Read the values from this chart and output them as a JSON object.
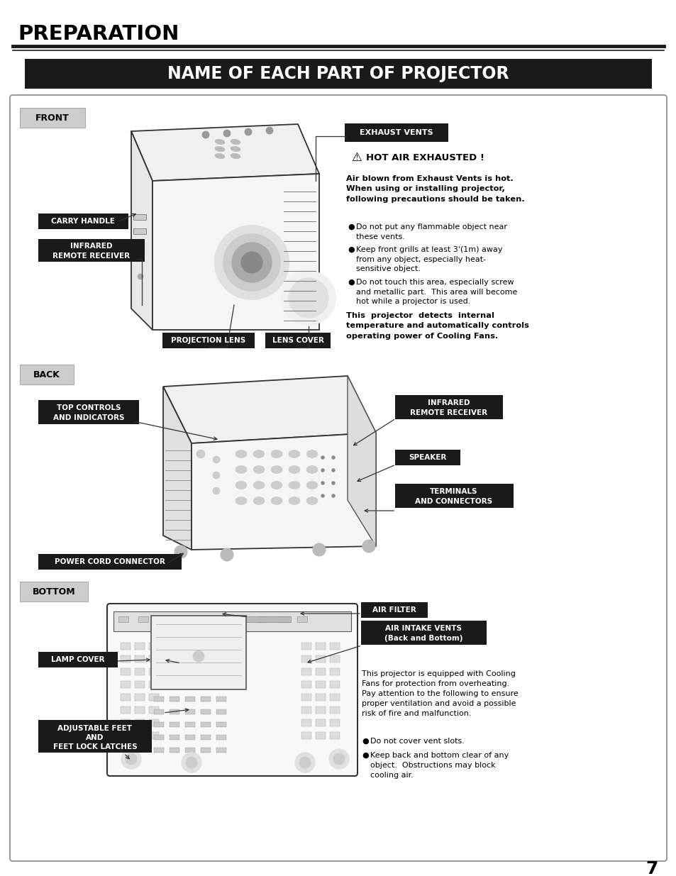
{
  "page_bg": "#ffffff",
  "title_main": "PREPARATION",
  "title_section": "NAME OF EACH PART OF PROJECTOR",
  "section_bg": "#1a1a1a",
  "section_text_color": "#ffffff",
  "page_number": "7",
  "front_label": "FRONT",
  "back_label": "BACK",
  "bottom_label": "BOTTOM",
  "exhaust_vents_label": "EXHAUST VENTS",
  "hot_air_title": "HOT AIR EXHAUSTED !",
  "hot_air_bold": "Air blown from Exhaust Vents is hot.\nWhen using or installing projector,\nfollowing precautions should be taken.",
  "hot_air_b1": "Do not put any flammable object near\nthese vents.",
  "hot_air_b2": "Keep front grills at least 3'(1m) away\nfrom any object, especially heat-\nsensitive object.",
  "hot_air_b3": "Do not touch this area, especially screw\nand metallic part.  This area will become\nhot while a projector is used.",
  "hot_air_text2": "This  projector  detects  internal\ntemperature and automatically controls\noperating power of Cooling Fans.",
  "carry_handle": "CARRY HANDLE",
  "infrared_remote_front": "INFRARED\nREMOTE RECEIVER",
  "projection_lens": "PROJECTION LENS",
  "lens_cover": "LENS COVER",
  "top_controls": "TOP CONTROLS\nAND INDICATORS",
  "infrared_remote_back": "INFRARED\nREMOTE RECEIVER",
  "speaker": "SPEAKER",
  "terminals": "TERMINALS\nAND CONNECTORS",
  "power_cord": "POWER CORD CONNECTOR",
  "air_filter": "AIR FILTER",
  "air_intake": "AIR INTAKE VENTS\n(Back and Bottom)",
  "lamp_cover": "LAMP COVER",
  "adj_feet": "ADJUSTABLE FEET\nAND\nFEET LOCK LATCHES",
  "bottom_text1": "This projector is equipped with Cooling\nFans for protection from overheating.\nPay attention to the following to ensure\nproper ventilation and avoid a possible\nrisk of fire and malfunction.",
  "bottom_b1": "Do not cover vent slots.",
  "bottom_b2": "Keep back and bottom clear of any\nobject.  Obstructions may block\ncooling air."
}
